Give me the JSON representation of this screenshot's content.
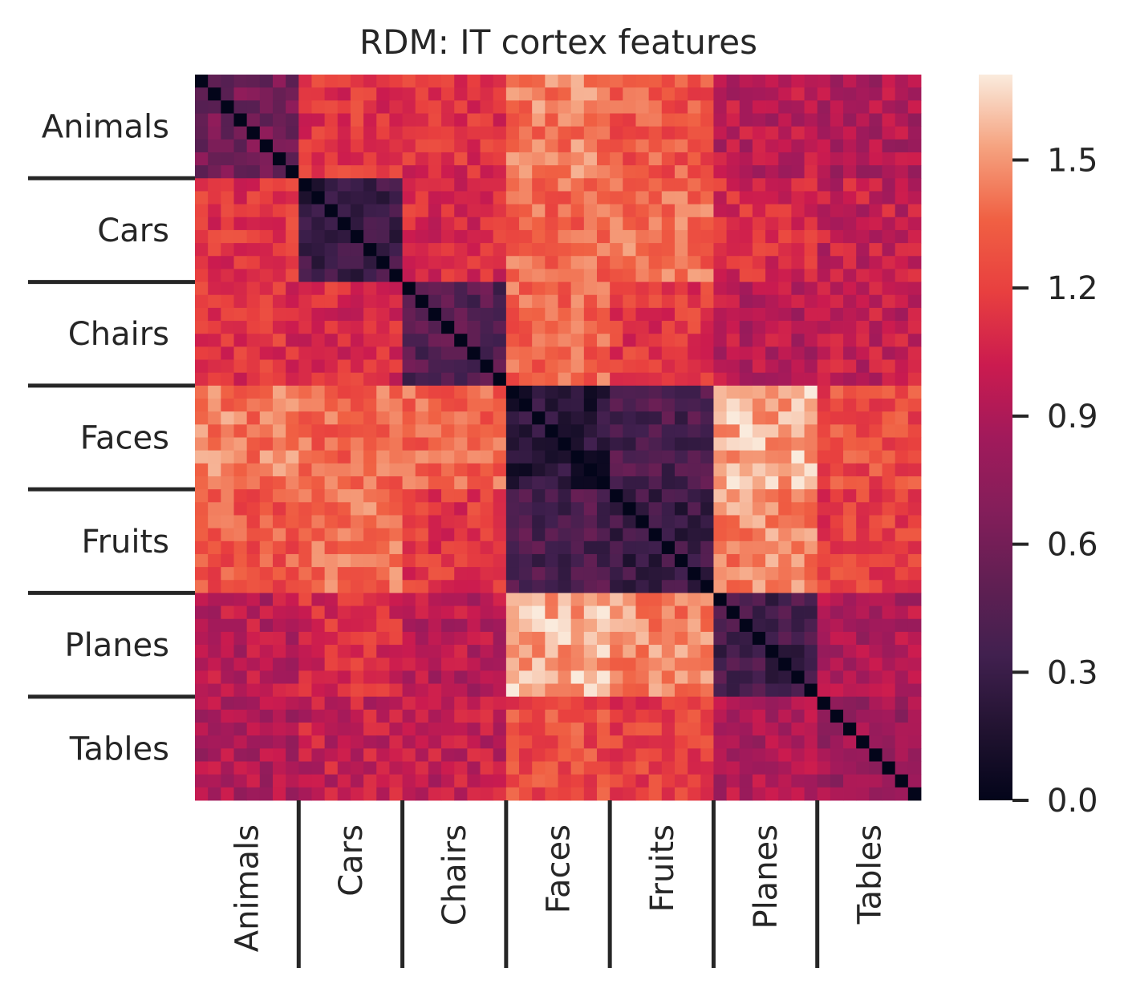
{
  "chart_data": {
    "type": "heatmap",
    "title": "RDM: IT cortex features",
    "matrix_size": 56,
    "items_per_category": 8,
    "categories": [
      "Animals",
      "Cars",
      "Chairs",
      "Faces",
      "Fruits",
      "Planes",
      "Tables"
    ],
    "value_range": [
      0.0,
      1.7
    ],
    "colormap": "rocket",
    "colorbar_ticks": [
      "0.0",
      "0.3",
      "0.6",
      "0.9",
      "1.2",
      "1.5"
    ],
    "colorbar_tick_values": [
      0.0,
      0.3,
      0.6,
      0.9,
      1.2,
      1.5
    ],
    "diagonal_value": 0.0,
    "block_means": [
      [
        0.6,
        1.15,
        1.12,
        1.42,
        1.3,
        0.95,
        0.9
      ],
      [
        1.15,
        0.3,
        1.1,
        1.35,
        1.38,
        1.1,
        1.0
      ],
      [
        1.12,
        1.1,
        0.45,
        1.35,
        1.15,
        0.95,
        1.0
      ],
      [
        1.42,
        1.35,
        1.35,
        0.2,
        0.4,
        1.55,
        1.25
      ],
      [
        1.3,
        1.38,
        1.15,
        0.4,
        0.3,
        1.45,
        1.2
      ],
      [
        0.95,
        1.1,
        0.95,
        1.55,
        1.45,
        0.35,
        0.9
      ],
      [
        0.9,
        1.0,
        1.0,
        1.25,
        1.2,
        0.9,
        0.8
      ]
    ],
    "xlabel": "",
    "ylabel": ""
  }
}
